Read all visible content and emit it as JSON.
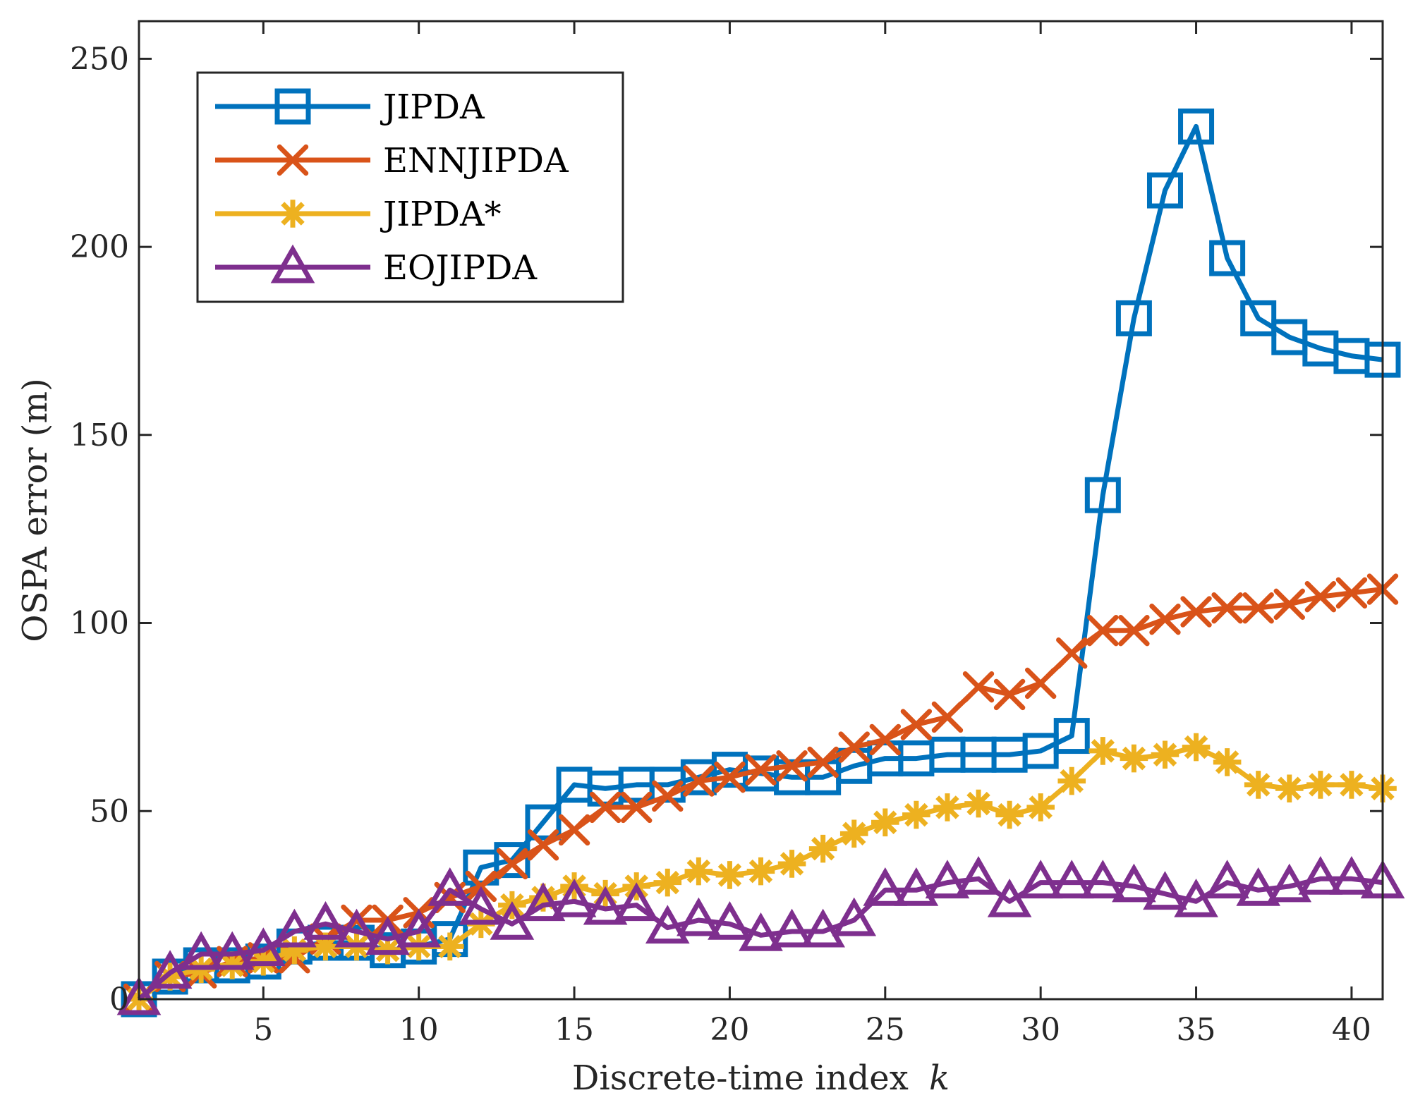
{
  "chart_data": {
    "type": "line",
    "title": "",
    "xlabel": "Discrete-time index",
    "xlabel_var": "k",
    "ylabel": "OSPA error (m)",
    "xlim": [
      1,
      41
    ],
    "ylim": [
      0,
      260
    ],
    "xticks": [
      5,
      10,
      15,
      20,
      25,
      30,
      35,
      40
    ],
    "xtick_labels": [
      "5",
      "10",
      "15",
      "20",
      "25",
      "30",
      "35",
      "40"
    ],
    "yticks": [
      0,
      50,
      100,
      150,
      200,
      250
    ],
    "ytick_labels": [
      "0",
      "50",
      "100",
      "150",
      "200",
      "250"
    ],
    "grid": false,
    "legend_position": "top-left",
    "x": [
      1,
      2,
      3,
      4,
      5,
      6,
      7,
      8,
      9,
      10,
      11,
      12,
      13,
      14,
      15,
      16,
      17,
      18,
      19,
      20,
      21,
      22,
      23,
      24,
      25,
      26,
      27,
      28,
      29,
      30,
      31,
      32,
      33,
      34,
      35,
      36,
      37,
      38,
      39,
      40,
      41
    ],
    "series": [
      {
        "name": "JIPDA",
        "color": "#0072BD",
        "marker": "square",
        "values": [
          0,
          6,
          9,
          9,
          10,
          14,
          15,
          15,
          13,
          14,
          16,
          35,
          37,
          47,
          57,
          56,
          57,
          57,
          59,
          61,
          60,
          59,
          59,
          62,
          64,
          64,
          65,
          65,
          65,
          66,
          70,
          134,
          181,
          215,
          232,
          197,
          181,
          176,
          173,
          171,
          170
        ]
      },
      {
        "name": "ENNJIPDA",
        "color": "#D95319",
        "marker": "x",
        "values": [
          0,
          6,
          7,
          10,
          11,
          11,
          16,
          21,
          21,
          23,
          27,
          30,
          36,
          41,
          45,
          51,
          51,
          54,
          58,
          59,
          61,
          62,
          63,
          67,
          69,
          73,
          75,
          83,
          81,
          84,
          92,
          98,
          98,
          101,
          103,
          104,
          104,
          105,
          107,
          108,
          109
        ]
      },
      {
        "name": "JIPDA*",
        "color": "#EDB120",
        "marker": "asterisk",
        "values": [
          0,
          6,
          8,
          9,
          10,
          13,
          14,
          14,
          13,
          14,
          14,
          20,
          25,
          27,
          30,
          28,
          30,
          31,
          34,
          33,
          34,
          36,
          40,
          44,
          47,
          49,
          51,
          52,
          49,
          51,
          58,
          66,
          64,
          65,
          67,
          63,
          57,
          56,
          57,
          57,
          56
        ]
      },
      {
        "name": "EOJIPDA",
        "color": "#7E2F8E",
        "marker": "triangle",
        "values": [
          0,
          7,
          12,
          12,
          13,
          18,
          20,
          18,
          16,
          18,
          29,
          24,
          20,
          25,
          26,
          24,
          25,
          19,
          21,
          20,
          17,
          18,
          18,
          21,
          29,
          29,
          31,
          32,
          26,
          31,
          31,
          31,
          30,
          28,
          26,
          31,
          29,
          30,
          32,
          32,
          31
        ]
      }
    ]
  }
}
